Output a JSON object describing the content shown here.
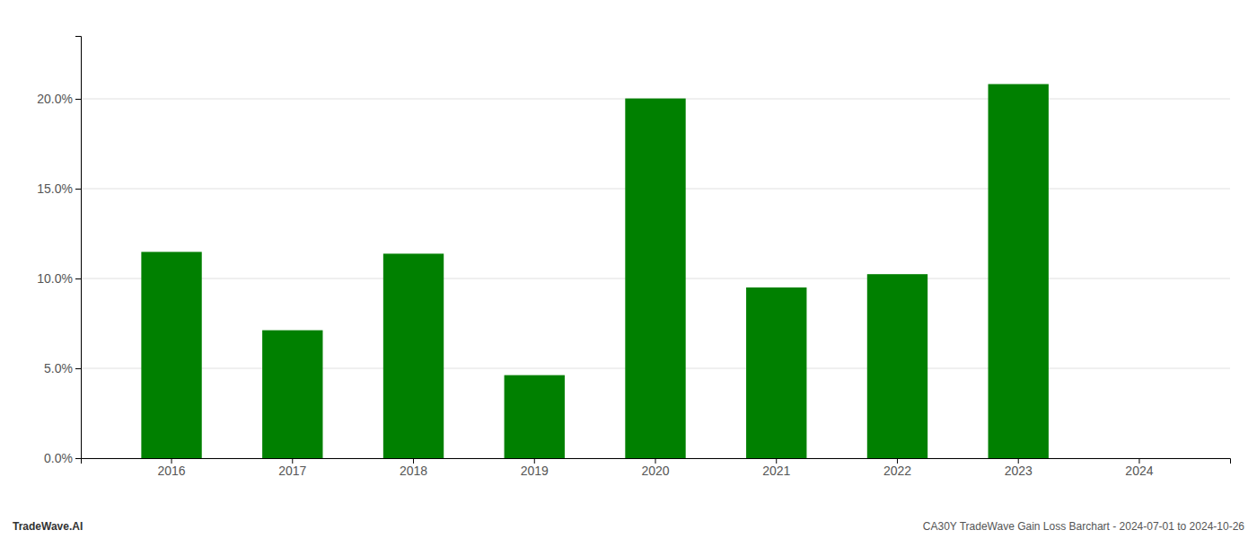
{
  "chart_data": {
    "type": "bar",
    "categories": [
      "2016",
      "2017",
      "2018",
      "2019",
      "2020",
      "2021",
      "2022",
      "2023",
      "2024"
    ],
    "values": [
      0.1148,
      0.0712,
      0.1138,
      0.0462,
      0.2002,
      0.095,
      0.1024,
      0.2082,
      0.0
    ],
    "colors": [
      "#008000",
      "#008000",
      "#008000",
      "#008000",
      "#008000",
      "#008000",
      "#008000",
      "#008000",
      "#ffffff"
    ],
    "ylim": [
      0,
      0.235
    ],
    "yticks": [
      {
        "value": 0.0,
        "label": "0.0%"
      },
      {
        "value": 0.05,
        "label": "5.0%"
      },
      {
        "value": 0.1,
        "label": "10.0%"
      },
      {
        "value": 0.15,
        "label": "15.0%"
      },
      {
        "value": 0.2,
        "label": "20.0%"
      }
    ],
    "grid": true,
    "annotations": [
      "TradeWave.AI",
      "CA30Y TradeWave Gain Loss Barchart - 2024-07-01 to 2024-10-26"
    ]
  }
}
